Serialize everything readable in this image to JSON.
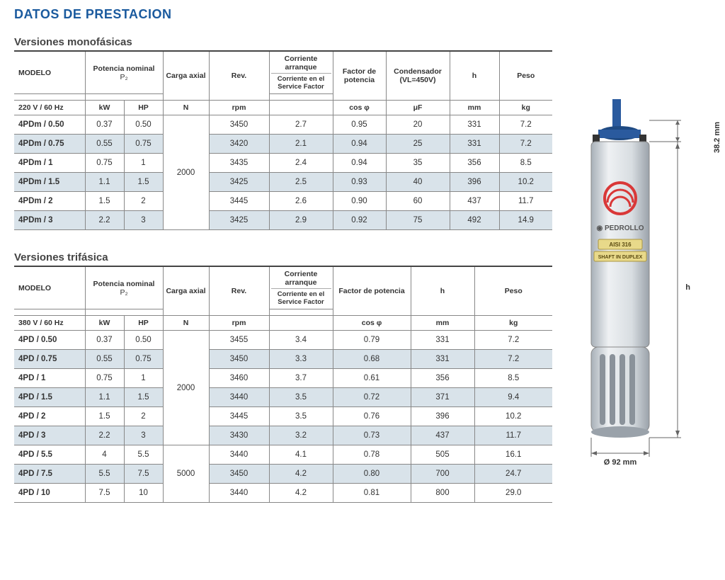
{
  "colors": {
    "title": "#1a5a9e",
    "border": "#888888",
    "row_even": "#d9e3ea",
    "row_odd": "#ffffff",
    "pump_body": "#d8dde1",
    "pump_body_dark": "#b8bfc5",
    "pump_top": "#2a5a9e",
    "pump_logo": "#d93838",
    "badge_bg": "#e8d98a"
  },
  "title": "DATOS DE PRESTACION",
  "section1": {
    "title": "Versiones monofásicas",
    "headers": {
      "modelo": "MODELO",
      "potencia": "Potencia nominal",
      "p2": "P₂",
      "voltage": "220 V / 60 Hz",
      "kw": "kW",
      "hp": "HP",
      "carga": "Carga axial",
      "n": "N",
      "rev": "Rev.",
      "rpm": "rpm",
      "corriente_top": "Corriente arranque",
      "corriente_sub": "Corriente en el Service Factor",
      "factor": "Factor de potencia",
      "cos": "cos φ",
      "capacitor": "Condensador (VL=450V)",
      "uf": "μF",
      "h": "h",
      "mm": "mm",
      "peso": "Peso",
      "kg": "kg"
    },
    "carga_val": "2000",
    "rows": [
      {
        "m": "4PDm / 0.50",
        "kw": "0.37",
        "hp": "0.50",
        "rpm": "3450",
        "c": "2.7",
        "cos": "0.95",
        "uf": "20",
        "mm": "331",
        "kg": "7.2"
      },
      {
        "m": "4PDm / 0.75",
        "kw": "0.55",
        "hp": "0.75",
        "rpm": "3420",
        "c": "2.1",
        "cos": "0.94",
        "uf": "25",
        "mm": "331",
        "kg": "7.2"
      },
      {
        "m": "4PDm / 1",
        "kw": "0.75",
        "hp": "1",
        "rpm": "3435",
        "c": "2.4",
        "cos": "0.94",
        "uf": "35",
        "mm": "356",
        "kg": "8.5"
      },
      {
        "m": "4PDm / 1.5",
        "kw": "1.1",
        "hp": "1.5",
        "rpm": "3425",
        "c": "2.5",
        "cos": "0.93",
        "uf": "40",
        "mm": "396",
        "kg": "10.2"
      },
      {
        "m": "4PDm / 2",
        "kw": "1.5",
        "hp": "2",
        "rpm": "3445",
        "c": "2.6",
        "cos": "0.90",
        "uf": "60",
        "mm": "437",
        "kg": "11.7"
      },
      {
        "m": "4PDm / 3",
        "kw": "2.2",
        "hp": "3",
        "rpm": "3425",
        "c": "2.9",
        "cos": "0.92",
        "uf": "75",
        "mm": "492",
        "kg": "14.9"
      }
    ]
  },
  "section2": {
    "title": "Versiones trifásica",
    "headers": {
      "modelo": "MODELO",
      "potencia": "Potencia nominal",
      "p2": "P₂",
      "voltage": "380 V / 60 Hz",
      "kw": "kW",
      "hp": "HP",
      "carga": "Carga axial",
      "n": "N",
      "rev": "Rev.",
      "rpm": "rpm",
      "corriente_top": "Corriente arranque",
      "corriente_sub": "Corriente en el Service Factor",
      "factor": "Factor de potencia",
      "cos": "cos φ",
      "h": "h",
      "mm": "mm",
      "peso": "Peso",
      "kg": "kg"
    },
    "carga_vals": [
      "2000",
      "5000"
    ],
    "rows": [
      {
        "m": "4PD / 0.50",
        "kw": "0.37",
        "hp": "0.50",
        "rpm": "3455",
        "c": "3.4",
        "cos": "0.79",
        "mm": "331",
        "kg": "7.2"
      },
      {
        "m": "4PD / 0.75",
        "kw": "0.55",
        "hp": "0.75",
        "rpm": "3450",
        "c": "3.3",
        "cos": "0.68",
        "mm": "331",
        "kg": "7.2"
      },
      {
        "m": "4PD / 1",
        "kw": "0.75",
        "hp": "1",
        "rpm": "3460",
        "c": "3.7",
        "cos": "0.61",
        "mm": "356",
        "kg": "8.5"
      },
      {
        "m": "4PD / 1.5",
        "kw": "1.1",
        "hp": "1.5",
        "rpm": "3440",
        "c": "3.5",
        "cos": "0.72",
        "mm": "371",
        "kg": "9.4"
      },
      {
        "m": "4PD / 2",
        "kw": "1.5",
        "hp": "2",
        "rpm": "3445",
        "c": "3.5",
        "cos": "0.76",
        "mm": "396",
        "kg": "10.2"
      },
      {
        "m": "4PD / 3",
        "kw": "2.2",
        "hp": "3",
        "rpm": "3430",
        "c": "3.2",
        "cos": "0.73",
        "mm": "437",
        "kg": "11.7"
      },
      {
        "m": "4PD / 5.5",
        "kw": "4",
        "hp": "5.5",
        "rpm": "3440",
        "c": "4.1",
        "cos": "0.78",
        "mm": "505",
        "kg": "16.1"
      },
      {
        "m": "4PD / 7.5",
        "kw": "5.5",
        "hp": "7.5",
        "rpm": "3450",
        "c": "4.2",
        "cos": "0.80",
        "mm": "700",
        "kg": "24.7"
      },
      {
        "m": "4PD / 10",
        "kw": "7.5",
        "hp": "10",
        "rpm": "3440",
        "c": "4.2",
        "cos": "0.81",
        "mm": "800",
        "kg": "29.0"
      }
    ]
  },
  "diagram": {
    "brand": "PEDROLLO",
    "badge1": "AISI 316",
    "badge2": "SHAFT IN DUPLEX",
    "dim_top": "38.2 mm",
    "dim_h": "h",
    "dim_width": "Ø 92 mm"
  }
}
